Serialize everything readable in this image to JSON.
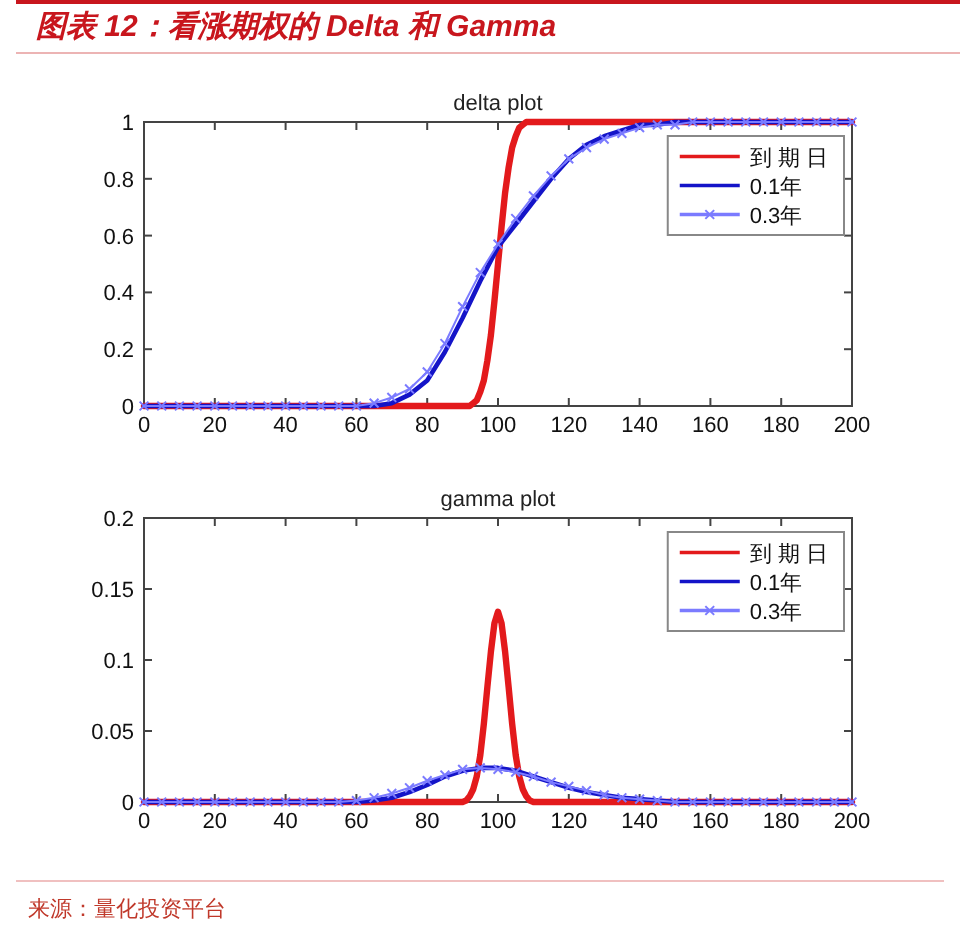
{
  "chart_data": [
    {
      "type": "line",
      "title": "图表 12：看涨期权的 Delta 和 Gamma",
      "subtitle": "delta plot",
      "legend": "top right",
      "xlim": [
        0,
        200
      ],
      "xticks": [
        0,
        20,
        40,
        60,
        80,
        100,
        120,
        140,
        160,
        180,
        200
      ],
      "ylim": [
        0,
        1
      ],
      "yticks": [
        0,
        0.2,
        0.4,
        0.6,
        0.8,
        1
      ],
      "series": [
        {
          "name": "到 期 日",
          "color": "#e31a1c",
          "x": [
            0,
            20,
            40,
            60,
            80,
            88,
            90,
            91,
            92,
            93,
            94,
            95,
            96,
            97,
            98,
            99,
            100,
            101,
            102,
            103,
            104,
            105,
            106,
            107,
            108,
            109,
            110,
            120,
            140,
            160,
            180,
            200
          ],
          "values": [
            0,
            0,
            0,
            0,
            0,
            0,
            0,
            0,
            0,
            0.01,
            0.02,
            0.05,
            0.09,
            0.16,
            0.25,
            0.37,
            0.5,
            0.63,
            0.75,
            0.84,
            0.91,
            0.95,
            0.98,
            0.99,
            1,
            1,
            1,
            1,
            1,
            1,
            1,
            1
          ]
        },
        {
          "name": "0.1年",
          "color": "#1414c8",
          "x": [
            0,
            5,
            10,
            15,
            20,
            25,
            30,
            35,
            40,
            45,
            50,
            55,
            60,
            65,
            70,
            75,
            80,
            85,
            90,
            95,
            100,
            105,
            110,
            115,
            120,
            125,
            130,
            135,
            140,
            145,
            150,
            155,
            160,
            165,
            170,
            175,
            180,
            185,
            190,
            195,
            200
          ],
          "values": [
            0,
            0,
            0,
            0,
            0,
            0,
            0,
            0,
            0,
            0,
            0,
            0,
            0,
            0,
            0.01,
            0.04,
            0.09,
            0.19,
            0.31,
            0.44,
            0.56,
            0.64,
            0.72,
            0.8,
            0.87,
            0.92,
            0.95,
            0.97,
            0.99,
            0.99,
            1,
            1,
            1,
            1,
            1,
            1,
            1,
            1,
            1,
            1,
            1
          ]
        },
        {
          "name": "0.3年",
          "color": "#7b7bff",
          "marker": "cross",
          "x": [
            0,
            5,
            10,
            15,
            20,
            25,
            30,
            35,
            40,
            45,
            50,
            55,
            60,
            65,
            70,
            75,
            80,
            85,
            90,
            95,
            100,
            105,
            110,
            115,
            120,
            125,
            130,
            135,
            140,
            145,
            150,
            155,
            160,
            165,
            170,
            175,
            180,
            185,
            190,
            195,
            200
          ],
          "values": [
            0,
            0,
            0,
            0,
            0,
            0,
            0,
            0,
            0,
            0,
            0,
            0,
            0,
            0.01,
            0.03,
            0.06,
            0.12,
            0.22,
            0.35,
            0.47,
            0.57,
            0.66,
            0.74,
            0.81,
            0.87,
            0.91,
            0.94,
            0.96,
            0.98,
            0.99,
            0.99,
            1,
            1,
            1,
            1,
            1,
            1,
            1,
            1,
            1,
            1
          ]
        }
      ]
    },
    {
      "type": "line",
      "title": "gamma plot",
      "legend": "top right",
      "xlim": [
        0,
        200
      ],
      "xticks": [
        0,
        20,
        40,
        60,
        80,
        100,
        120,
        140,
        160,
        180,
        200
      ],
      "ylim": [
        0,
        0.2
      ],
      "yticks": [
        0,
        0.05,
        0.1,
        0.15,
        0.2
      ],
      "annotations": [
        "来源：量化投资平台"
      ],
      "series": [
        {
          "name": "到 期 日",
          "color": "#e31a1c",
          "x": [
            0,
            20,
            40,
            60,
            80,
            88,
            90,
            91,
            92,
            93,
            94,
            95,
            96,
            97,
            98,
            99,
            100,
            101,
            102,
            103,
            104,
            105,
            106,
            107,
            108,
            109,
            110,
            120,
            140,
            160,
            180,
            200
          ],
          "values": [
            0,
            0,
            0,
            0,
            0,
            0,
            0,
            0.001,
            0.004,
            0.009,
            0.018,
            0.033,
            0.055,
            0.081,
            0.106,
            0.126,
            0.134,
            0.126,
            0.106,
            0.081,
            0.055,
            0.033,
            0.018,
            0.009,
            0.004,
            0.001,
            0,
            0,
            0,
            0,
            0,
            0
          ]
        },
        {
          "name": "0.1年",
          "color": "#1414c8",
          "x": [
            0,
            5,
            10,
            15,
            20,
            25,
            30,
            35,
            40,
            45,
            50,
            55,
            60,
            65,
            70,
            75,
            80,
            85,
            90,
            95,
            100,
            105,
            110,
            115,
            120,
            125,
            130,
            135,
            140,
            145,
            150,
            155,
            160,
            165,
            170,
            175,
            180,
            185,
            190,
            195,
            200
          ],
          "values": [
            0,
            0,
            0,
            0,
            0,
            0,
            0,
            0,
            0,
            0,
            0,
            0,
            0,
            0.001,
            0.003,
            0.007,
            0.012,
            0.018,
            0.022,
            0.024,
            0.024,
            0.022,
            0.018,
            0.014,
            0.01,
            0.007,
            0.005,
            0.003,
            0.002,
            0.001,
            0,
            0,
            0,
            0,
            0,
            0,
            0,
            0,
            0,
            0,
            0
          ]
        },
        {
          "name": "0.3年",
          "color": "#7b7bff",
          "marker": "cross",
          "x": [
            0,
            5,
            10,
            15,
            20,
            25,
            30,
            35,
            40,
            45,
            50,
            55,
            60,
            65,
            70,
            75,
            80,
            85,
            90,
            95,
            100,
            105,
            110,
            115,
            120,
            125,
            130,
            135,
            140,
            145,
            150,
            155,
            160,
            165,
            170,
            175,
            180,
            185,
            190,
            195,
            200
          ],
          "values": [
            0,
            0,
            0,
            0,
            0,
            0,
            0,
            0,
            0,
            0,
            0,
            0,
            0.001,
            0.003,
            0.006,
            0.01,
            0.015,
            0.019,
            0.023,
            0.024,
            0.023,
            0.021,
            0.018,
            0.014,
            0.011,
            0.008,
            0.005,
            0.003,
            0.002,
            0.001,
            0,
            0,
            0,
            0,
            0,
            0,
            0,
            0,
            0,
            0,
            0
          ]
        }
      ]
    }
  ]
}
